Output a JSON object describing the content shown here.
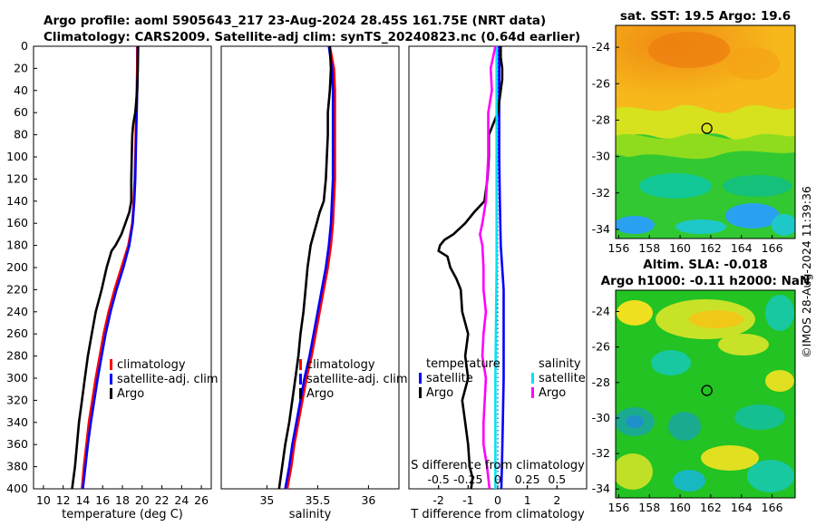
{
  "titles": {
    "line1": "Argo profile: aoml 5905643_217 23-Aug-2024 28.45S 161.75E (NRT data)",
    "line2": "Climatology: CARS2009. Satellite-adj clim: synTS_20240823.nc (0.64d earlier)",
    "sst": "sat. SST: 19.5 Argo: 19.6",
    "sla1": "Altim. SLA: -0.018",
    "sla2": "Argo h1000: -0.11 h2000: NaN"
  },
  "watermark": "©IMOS 28-Aug-2024 11:39:36",
  "colors": {
    "climatology": "#ff0000",
    "satellite": "#0000ff",
    "argo": "#000000",
    "sat_salt": "#00e5ee",
    "argo_salt": "#ff00ff"
  },
  "chart_data": [
    {
      "type": "line",
      "title": "temperature profile",
      "xlabel": "temperature (deg C)",
      "ylabel": "",
      "xlim": [
        9,
        27
      ],
      "ylim": [
        400,
        0
      ],
      "xticks": [
        "10",
        "12",
        "14",
        "16",
        "18",
        "20",
        "22",
        "24",
        "26"
      ],
      "xtick_values": [
        10,
        12,
        14,
        16,
        18,
        20,
        22,
        24,
        26
      ],
      "yticks": [
        "0",
        "20",
        "40",
        "60",
        "80",
        "100",
        "120",
        "140",
        "160",
        "180",
        "200",
        "220",
        "240",
        "260",
        "280",
        "300",
        "320",
        "340",
        "360",
        "380",
        "400"
      ],
      "ytick_values": [
        0,
        20,
        40,
        60,
        80,
        100,
        120,
        140,
        160,
        180,
        200,
        220,
        240,
        260,
        280,
        300,
        320,
        340,
        360,
        380,
        400
      ],
      "legend": {
        "location": "right-middle",
        "entries": [
          "climatology",
          "satellite-adj. clim",
          "Argo"
        ]
      },
      "series": [
        {
          "name": "climatology",
          "color": "#ff0000",
          "depth": [
            0,
            20,
            40,
            60,
            80,
            100,
            120,
            140,
            160,
            180,
            200,
            220,
            240,
            260,
            280,
            300,
            320,
            340,
            360,
            380,
            400
          ],
          "values": [
            19.5,
            19.5,
            19.45,
            19.4,
            19.35,
            19.3,
            19.25,
            19.15,
            19.0,
            18.6,
            17.9,
            17.2,
            16.6,
            16.1,
            15.7,
            15.3,
            14.95,
            14.6,
            14.35,
            14.1,
            13.9
          ]
        },
        {
          "name": "satellite-adj. clim",
          "color": "#0000ff",
          "depth": [
            0,
            20,
            40,
            60,
            80,
            100,
            120,
            140,
            160,
            180,
            200,
            220,
            240,
            260,
            280,
            300,
            320,
            340,
            360,
            380,
            400
          ],
          "values": [
            19.55,
            19.55,
            19.5,
            19.45,
            19.4,
            19.35,
            19.3,
            19.2,
            19.05,
            18.7,
            18.1,
            17.4,
            16.8,
            16.3,
            15.9,
            15.5,
            15.15,
            14.8,
            14.5,
            14.25,
            14.0
          ]
        },
        {
          "name": "Argo",
          "color": "#000000",
          "depth": [
            0,
            20,
            40,
            60,
            70,
            80,
            100,
            120,
            140,
            150,
            160,
            170,
            180,
            185,
            200,
            220,
            240,
            260,
            280,
            300,
            320,
            340,
            360,
            380,
            400
          ],
          "values": [
            19.6,
            19.55,
            19.5,
            19.3,
            19.1,
            19.0,
            18.95,
            18.9,
            18.9,
            18.7,
            18.3,
            17.9,
            17.3,
            16.9,
            16.4,
            15.9,
            15.3,
            14.9,
            14.5,
            14.2,
            13.9,
            13.6,
            13.4,
            13.2,
            12.9
          ]
        }
      ]
    },
    {
      "type": "line",
      "title": "salinity profile",
      "xlabel": "salinity",
      "ylabel": "",
      "xlim": [
        34.55,
        36.3
      ],
      "ylim": [
        400,
        0
      ],
      "xticks": [
        "35",
        "35.5",
        "36"
      ],
      "xtick_values": [
        35,
        35.5,
        36
      ],
      "legend": {
        "location": "right-middle",
        "entries": [
          "climatology",
          "satellite-adj. clim",
          "Argo"
        ]
      },
      "series": [
        {
          "name": "climatology",
          "color": "#ff0000",
          "depth": [
            0,
            20,
            40,
            60,
            80,
            100,
            120,
            140,
            160,
            180,
            200,
            220,
            240,
            260,
            280,
            300,
            320,
            340,
            360,
            380,
            400
          ],
          "values": [
            35.62,
            35.66,
            35.67,
            35.67,
            35.67,
            35.67,
            35.67,
            35.66,
            35.65,
            35.63,
            35.6,
            35.56,
            35.52,
            35.48,
            35.44,
            35.39,
            35.35,
            35.31,
            35.27,
            35.24,
            35.2
          ]
        },
        {
          "name": "satellite-adj. clim",
          "color": "#0000ff",
          "depth": [
            0,
            20,
            40,
            60,
            80,
            100,
            120,
            140,
            160,
            180,
            200,
            220,
            240,
            260,
            280,
            300,
            320,
            340,
            360,
            380,
            400
          ],
          "values": [
            35.61,
            35.64,
            35.65,
            35.65,
            35.65,
            35.65,
            35.65,
            35.64,
            35.63,
            35.61,
            35.58,
            35.54,
            35.5,
            35.46,
            35.42,
            35.37,
            35.33,
            35.29,
            35.25,
            35.22,
            35.18
          ]
        },
        {
          "name": "Argo",
          "color": "#000000",
          "depth": [
            0,
            20,
            40,
            60,
            80,
            100,
            120,
            140,
            150,
            160,
            170,
            180,
            200,
            220,
            240,
            260,
            280,
            300,
            320,
            340,
            360,
            380,
            400
          ],
          "values": [
            35.62,
            35.63,
            35.62,
            35.6,
            35.6,
            35.59,
            35.58,
            35.56,
            35.52,
            35.49,
            35.46,
            35.43,
            35.4,
            35.38,
            35.36,
            35.33,
            35.31,
            35.28,
            35.25,
            35.22,
            35.18,
            35.15,
            35.12
          ]
        }
      ]
    },
    {
      "type": "line",
      "title": "difference from climatology",
      "xlabel": "T difference from climatology",
      "xlabel_top": "S difference from climatology",
      "ylabel": "",
      "xlim": [
        -3,
        3
      ],
      "ylim": [
        400,
        0
      ],
      "xticks": [
        "-2",
        "-1",
        "0",
        "1",
        "2"
      ],
      "xtick_values": [
        -2,
        -1,
        0,
        1,
        2
      ],
      "s_xticks": [
        "-0.5",
        "-0.25",
        "0",
        "0.25",
        "0.5"
      ],
      "s_xtick_values": [
        -0.5,
        -0.25,
        0,
        0.25,
        0.5
      ],
      "legend": {
        "location": "right-middle",
        "groups": [
          {
            "title": "temperature",
            "entries": [
              "satellite",
              "Argo"
            ]
          },
          {
            "title": "salinity",
            "entries": [
              "satellite",
              "Argo"
            ]
          }
        ]
      },
      "series": [
        {
          "name": "T satellite",
          "color": "#0000ff",
          "depth": [
            0,
            20,
            40,
            60,
            80,
            100,
            140,
            180,
            200,
            220,
            260,
            300,
            340,
            380,
            400
          ],
          "values": [
            0.05,
            0.05,
            0.05,
            0.05,
            0.05,
            0.05,
            0.07,
            0.1,
            0.15,
            0.2,
            0.2,
            0.2,
            0.17,
            0.14,
            0.12
          ]
        },
        {
          "name": "T Argo",
          "color": "#000000",
          "depth": [
            0,
            10,
            20,
            30,
            40,
            60,
            80,
            100,
            120,
            140,
            150,
            160,
            170,
            175,
            180,
            185,
            190,
            200,
            210,
            220,
            240,
            260,
            280,
            300,
            320,
            340,
            360,
            380,
            390,
            400
          ],
          "values": [
            0.1,
            0.1,
            0.15,
            0.15,
            0.1,
            0.0,
            -0.3,
            -0.3,
            -0.35,
            -0.45,
            -0.8,
            -1.1,
            -1.5,
            -1.8,
            -1.95,
            -2.0,
            -1.7,
            -1.6,
            -1.4,
            -1.25,
            -1.2,
            -1.0,
            -1.1,
            -1.0,
            -1.2,
            -1.1,
            -1.0,
            -0.95,
            -0.85,
            -0.9
          ]
        },
        {
          "name": "S satellite",
          "color": "#00e5ee",
          "depth": [
            0,
            100,
            200,
            300,
            400
          ],
          "values": [
            -0.01,
            -0.01,
            -0.01,
            -0.02,
            -0.02
          ]
        },
        {
          "name": "S Argo",
          "color": "#ff00ff",
          "depth": [
            0,
            20,
            40,
            60,
            80,
            100,
            120,
            140,
            160,
            170,
            180,
            200,
            220,
            240,
            260,
            280,
            300,
            320,
            340,
            360,
            380,
            400
          ],
          "values": [
            -0.02,
            -0.06,
            -0.05,
            -0.08,
            -0.08,
            -0.08,
            -0.09,
            -0.1,
            -0.13,
            -0.15,
            -0.13,
            -0.12,
            -0.12,
            -0.1,
            -0.12,
            -0.13,
            -0.1,
            -0.11,
            -0.12,
            -0.12,
            -0.09,
            -0.07
          ]
        }
      ]
    },
    {
      "type": "heatmap",
      "title": "sat. SST: 19.5 Argo: 19.6",
      "xticks": [
        "156",
        "158",
        "160",
        "162",
        "164",
        "166"
      ],
      "yticks": [
        "-24",
        "-26",
        "-28",
        "-30",
        "-32",
        "-34"
      ],
      "xlim": [
        155.8,
        167.5
      ],
      "ylim": [
        -34.5,
        -22.8
      ],
      "marker": {
        "lon": 161.75,
        "lat": -28.45
      }
    },
    {
      "type": "heatmap",
      "title": "Altim. SLA: -0.018",
      "xticks": [
        "156",
        "158",
        "160",
        "162",
        "164",
        "166"
      ],
      "yticks": [
        "-24",
        "-26",
        "-28",
        "-30",
        "-32",
        "-34"
      ],
      "xlim": [
        155.8,
        167.5
      ],
      "ylim": [
        -34.5,
        -22.8
      ],
      "marker": {
        "lon": 161.75,
        "lat": -28.45
      }
    }
  ]
}
